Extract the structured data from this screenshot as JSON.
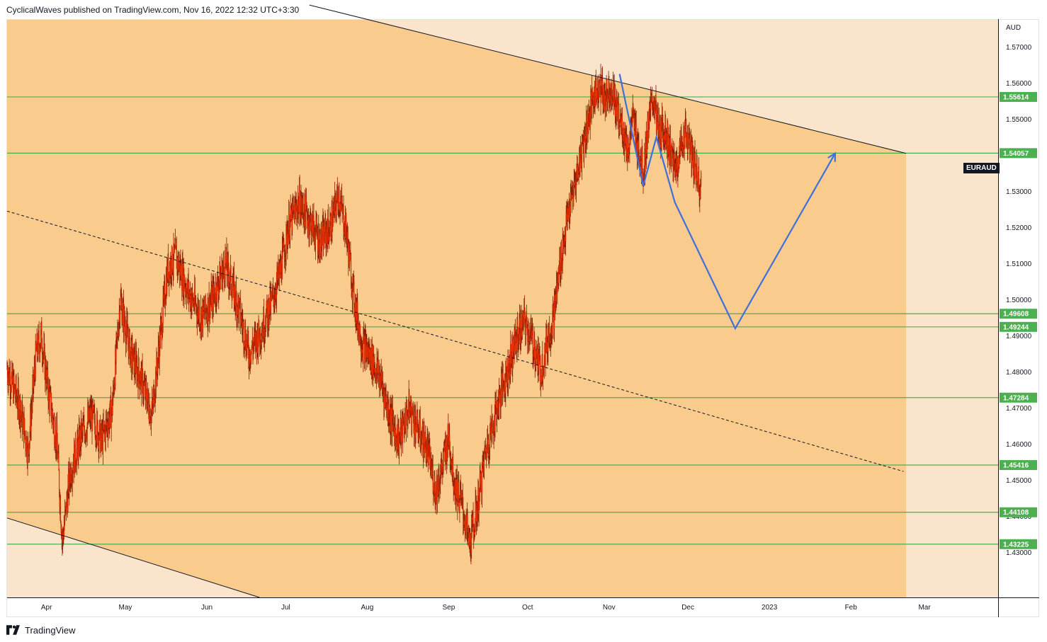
{
  "header": {
    "publisher_line": "CyclicalWaves published on TradingView.com, Nov 16, 2022 12:32 UTC+3:30"
  },
  "footer": {
    "brand": "TradingView",
    "logo_icon": "tradingview-logo-icon"
  },
  "symbol": "EURAUD",
  "currency": "AUD",
  "colors": {
    "channel_fill": "#f9cb8d",
    "background_fill": "#fbe4cc",
    "candle": "#e22d00",
    "wick": "#8b1a00",
    "support_line": "#4caf50",
    "price_tag": "#4caf50",
    "projection": "#3f6fdc",
    "channel_line": "#131722"
  },
  "chart_data": {
    "type": "candlestick",
    "title": "",
    "xlabel": "",
    "ylabel": "",
    "ylim": [
      1.4175,
      1.5775
    ],
    "x_range": [
      "2022-03-17",
      "2023-03-29"
    ],
    "yticks": [
      "1.57000",
      "1.56000",
      "1.55000",
      "1.54000",
      "1.53000",
      "1.52000",
      "1.51000",
      "1.50000",
      "1.49000",
      "1.48000",
      "1.47000",
      "1.46000",
      "1.45000",
      "1.44000",
      "1.43000"
    ],
    "xticks": [
      {
        "label": "Apr",
        "date": "2022-04-01"
      },
      {
        "label": "May",
        "date": "2022-05-01"
      },
      {
        "label": "Jun",
        "date": "2022-06-01"
      },
      {
        "label": "Jul",
        "date": "2022-07-01"
      },
      {
        "label": "Aug",
        "date": "2022-08-01"
      },
      {
        "label": "Sep",
        "date": "2022-09-01"
      },
      {
        "label": "Oct",
        "date": "2022-10-01"
      },
      {
        "label": "Nov",
        "date": "2022-11-01"
      },
      {
        "label": "Dec",
        "date": "2022-12-01"
      },
      {
        "label": "2023",
        "date": "2023-01-01"
      },
      {
        "label": "Feb",
        "date": "2023-02-01"
      },
      {
        "label": "Mar",
        "date": "2023-03-01"
      }
    ],
    "series": [
      {
        "type": "close",
        "points": [
          [
            "2022-03-17",
            1.481
          ],
          [
            "2022-03-22",
            1.47
          ],
          [
            "2022-03-25",
            1.458
          ],
          [
            "2022-03-28",
            1.485
          ],
          [
            "2022-03-30",
            1.49
          ],
          [
            "2022-04-01",
            1.478
          ],
          [
            "2022-04-05",
            1.46
          ],
          [
            "2022-04-07",
            1.433
          ],
          [
            "2022-04-10",
            1.452
          ],
          [
            "2022-04-14",
            1.462
          ],
          [
            "2022-04-18",
            1.468
          ],
          [
            "2022-04-22",
            1.461
          ],
          [
            "2022-04-26",
            1.47
          ],
          [
            "2022-04-29",
            1.5
          ],
          [
            "2022-05-03",
            1.485
          ],
          [
            "2022-05-07",
            1.478
          ],
          [
            "2022-05-11",
            1.468
          ],
          [
            "2022-05-14",
            1.488
          ],
          [
            "2022-05-17",
            1.508
          ],
          [
            "2022-05-20",
            1.512
          ],
          [
            "2022-05-25",
            1.502
          ],
          [
            "2022-05-30",
            1.495
          ],
          [
            "2022-06-03",
            1.5
          ],
          [
            "2022-06-08",
            1.51
          ],
          [
            "2022-06-13",
            1.498
          ],
          [
            "2022-06-17",
            1.485
          ],
          [
            "2022-06-22",
            1.492
          ],
          [
            "2022-06-26",
            1.5
          ],
          [
            "2022-06-29",
            1.508
          ],
          [
            "2022-07-02",
            1.52
          ],
          [
            "2022-07-06",
            1.527
          ],
          [
            "2022-07-10",
            1.522
          ],
          [
            "2022-07-14",
            1.516
          ],
          [
            "2022-07-18",
            1.52
          ],
          [
            "2022-07-21",
            1.529
          ],
          [
            "2022-07-24",
            1.519
          ],
          [
            "2022-07-27",
            1.5
          ],
          [
            "2022-07-30",
            1.488
          ],
          [
            "2022-08-03",
            1.483
          ],
          [
            "2022-08-06",
            1.478
          ],
          [
            "2022-08-10",
            1.467
          ],
          [
            "2022-08-13",
            1.461
          ],
          [
            "2022-08-17",
            1.47
          ],
          [
            "2022-08-21",
            1.463
          ],
          [
            "2022-08-24",
            1.458
          ],
          [
            "2022-08-27",
            1.447
          ],
          [
            "2022-08-29",
            1.452
          ],
          [
            "2022-09-01",
            1.462
          ],
          [
            "2022-09-03",
            1.45
          ],
          [
            "2022-09-06",
            1.443
          ],
          [
            "2022-09-09",
            1.432
          ],
          [
            "2022-09-12",
            1.443
          ],
          [
            "2022-09-15",
            1.458
          ],
          [
            "2022-09-18",
            1.466
          ],
          [
            "2022-09-21",
            1.475
          ],
          [
            "2022-09-24",
            1.482
          ],
          [
            "2022-09-27",
            1.49
          ],
          [
            "2022-09-30",
            1.494
          ],
          [
            "2022-10-03",
            1.488
          ],
          [
            "2022-10-06",
            1.48
          ],
          [
            "2022-10-08",
            1.487
          ],
          [
            "2022-10-11",
            1.496
          ],
          [
            "2022-10-13",
            1.508
          ],
          [
            "2022-10-16",
            1.522
          ],
          [
            "2022-10-19",
            1.532
          ],
          [
            "2022-10-22",
            1.543
          ],
          [
            "2022-10-25",
            1.553
          ],
          [
            "2022-10-28",
            1.56
          ],
          [
            "2022-10-30",
            1.556
          ],
          [
            "2022-11-02",
            1.559
          ],
          [
            "2022-11-04",
            1.552
          ],
          [
            "2022-11-06",
            1.548
          ],
          [
            "2022-11-08",
            1.541
          ],
          [
            "2022-11-10",
            1.55
          ],
          [
            "2022-11-12",
            1.543
          ],
          [
            "2022-11-14",
            1.535
          ],
          [
            "2022-11-16",
            1.549
          ],
          [
            "2022-11-18",
            1.556
          ],
          [
            "2022-11-20",
            1.545
          ],
          [
            "2022-11-22",
            1.548
          ],
          [
            "2022-11-24",
            1.542
          ],
          [
            "2022-11-26",
            1.536
          ],
          [
            "2022-11-28",
            1.541
          ],
          [
            "2022-11-30",
            1.547
          ],
          [
            "2022-12-02",
            1.541
          ],
          [
            "2022-12-04",
            1.536
          ],
          [
            "2022-12-06",
            1.531
          ]
        ]
      }
    ],
    "horizontal_levels": [
      "1.55614",
      "1.54057",
      "1.49608",
      "1.49244",
      "1.47284",
      "1.45416",
      "1.44108",
      "1.43225"
    ],
    "channel": {
      "upper_line": [
        [
          "2022-07-10",
          1.5816
        ],
        [
          "2023-02-22",
          1.5405
        ]
      ],
      "lower_line": [
        [
          "2022-03-17",
          1.4395
        ],
        [
          "2022-06-21",
          1.4175
        ]
      ],
      "mid_line": [
        [
          "2022-03-17",
          1.5245
        ],
        [
          "2023-02-21",
          1.4524
        ]
      ]
    },
    "projection_path": [
      [
        "2022-11-05",
        1.5625
      ],
      [
        "2022-11-14",
        1.5315
      ],
      [
        "2022-11-19",
        1.545
      ],
      [
        "2022-11-26",
        1.527
      ],
      [
        "2022-12-19",
        1.492
      ],
      [
        "2023-01-26",
        1.5405
      ]
    ],
    "shaded_region_end": "2023-02-22"
  }
}
